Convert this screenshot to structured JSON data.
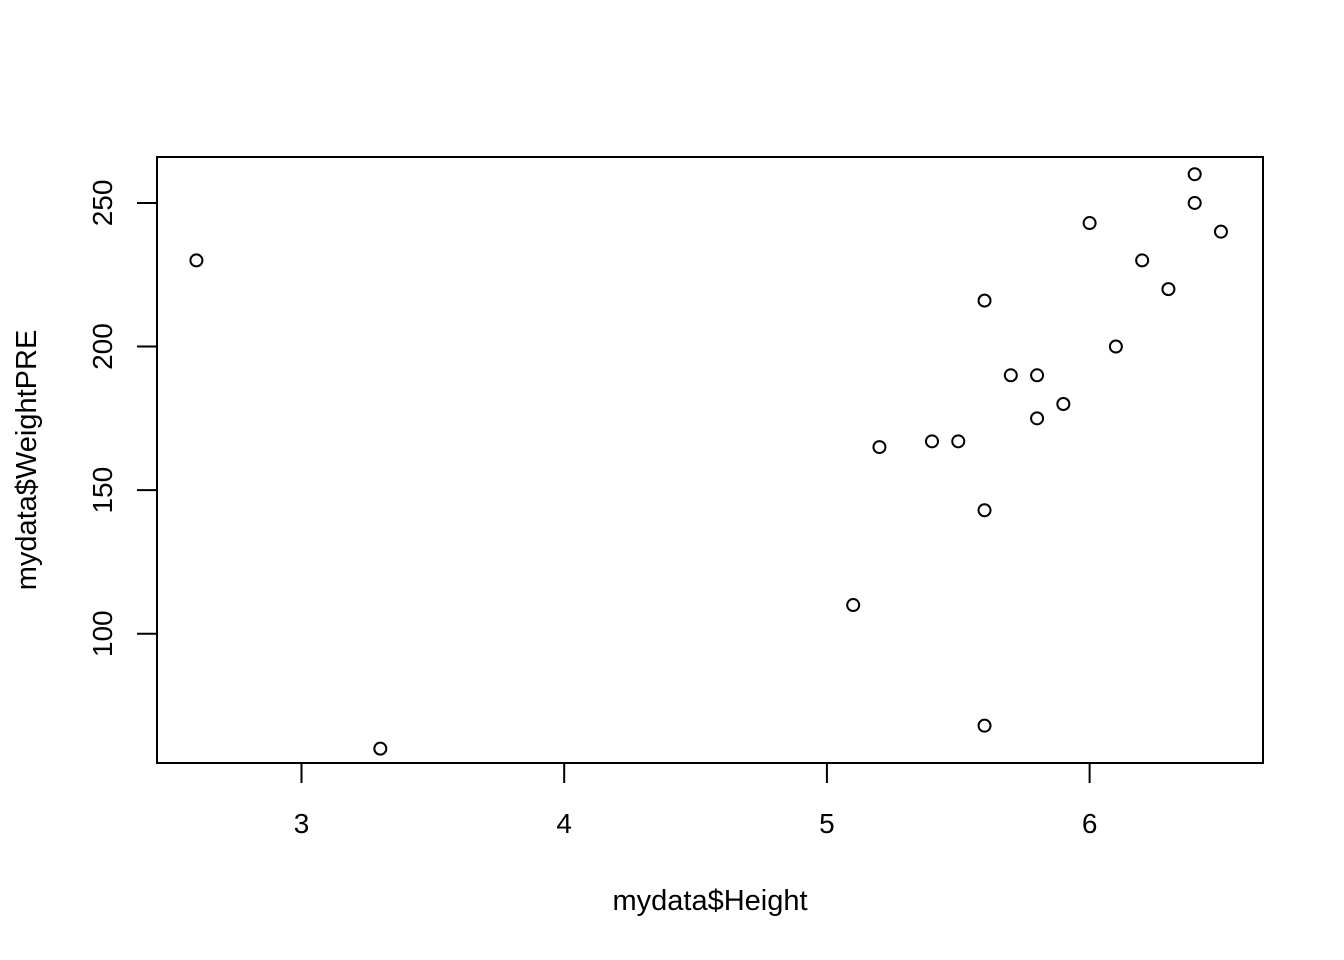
{
  "chart_data": {
    "type": "scatter",
    "title": "",
    "xlabel": "mydata$Height",
    "ylabel": "mydata$WeightPRE",
    "xlim": [
      2.45,
      6.66
    ],
    "ylim": [
      55,
      266
    ],
    "x_ticks": [
      3,
      4,
      5,
      6
    ],
    "y_ticks": [
      100,
      150,
      200,
      250
    ],
    "grid": false,
    "legend": "none",
    "marker": "open-circle",
    "color": "#000000",
    "points": [
      {
        "x": 2.6,
        "y": 230
      },
      {
        "x": 3.3,
        "y": 60
      },
      {
        "x": 5.1,
        "y": 110
      },
      {
        "x": 5.2,
        "y": 165
      },
      {
        "x": 5.4,
        "y": 167
      },
      {
        "x": 5.5,
        "y": 167
      },
      {
        "x": 5.6,
        "y": 216
      },
      {
        "x": 5.6,
        "y": 143
      },
      {
        "x": 5.6,
        "y": 68
      },
      {
        "x": 5.7,
        "y": 190
      },
      {
        "x": 5.8,
        "y": 190
      },
      {
        "x": 5.8,
        "y": 175
      },
      {
        "x": 5.9,
        "y": 180
      },
      {
        "x": 6.0,
        "y": 243
      },
      {
        "x": 6.1,
        "y": 200
      },
      {
        "x": 6.2,
        "y": 230
      },
      {
        "x": 6.3,
        "y": 220
      },
      {
        "x": 6.4,
        "y": 260
      },
      {
        "x": 6.4,
        "y": 250
      },
      {
        "x": 6.5,
        "y": 240
      }
    ]
  }
}
